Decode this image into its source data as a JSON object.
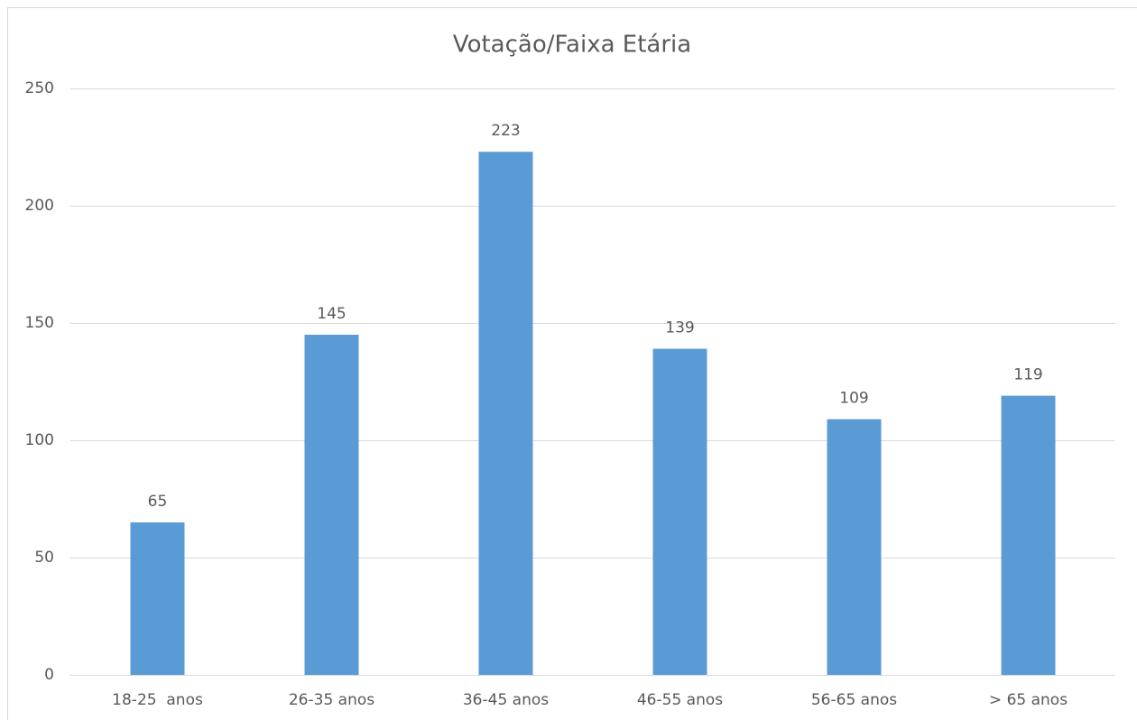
{
  "chart_data": {
    "type": "bar",
    "title": "Votação/Faixa Etária",
    "categories": [
      "18-25  anos",
      "26-35 anos",
      "36-45 anos",
      "46-55 anos",
      "56-65 anos",
      "> 65 anos"
    ],
    "values": [
      65,
      145,
      223,
      139,
      109,
      119
    ],
    "color": "#5b9bd5",
    "ylim": [
      0,
      250
    ],
    "yticks": [
      0,
      50,
      100,
      150,
      200,
      250
    ],
    "grid": true
  }
}
